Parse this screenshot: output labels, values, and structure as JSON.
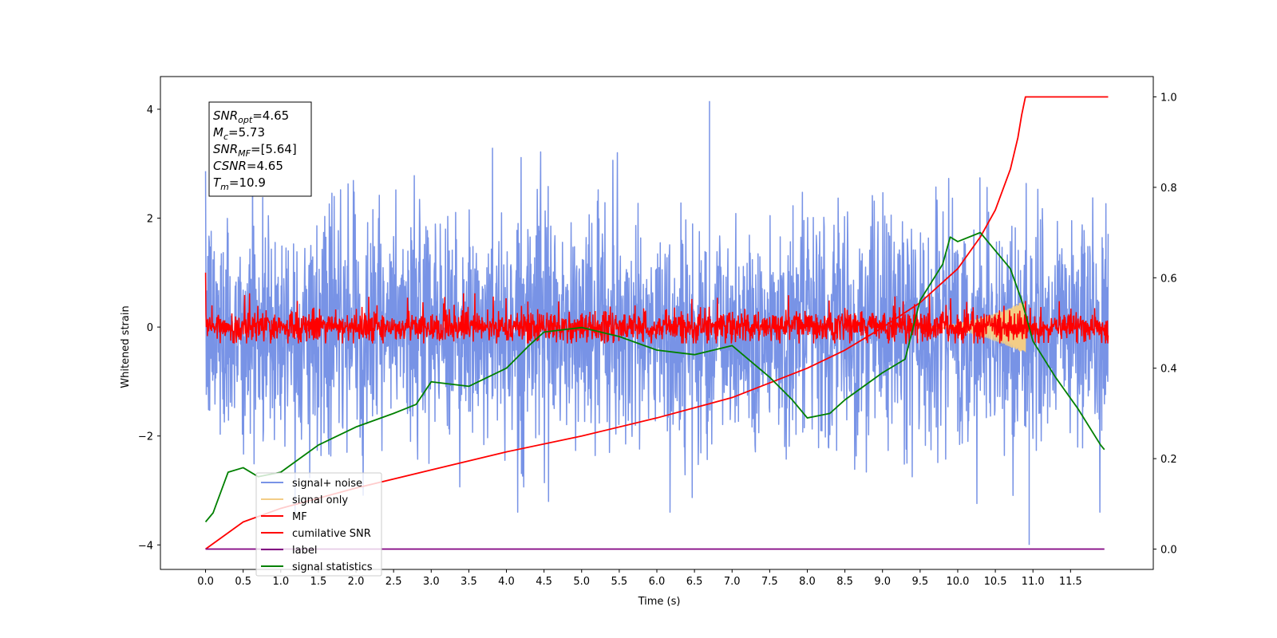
{
  "chart_data": {
    "type": "line",
    "xlabel": "Time (s)",
    "ylabel": "Whitened strain",
    "xlim": [
      -0.6,
      12.6
    ],
    "ylim": [
      -4.45,
      4.6
    ],
    "y2lim": [
      -0.045,
      1.045
    ],
    "x_ticks": [
      "0.0",
      "0.5",
      "1.0",
      "1.5",
      "2.0",
      "2.5",
      "3.0",
      "3.5",
      "4.0",
      "4.5",
      "5.0",
      "5.5",
      "6.0",
      "6.5",
      "7.0",
      "7.5",
      "8.0",
      "8.5",
      "9.0",
      "9.5",
      "10.0",
      "10.5",
      "11.0",
      "11.5"
    ],
    "y_ticks": [
      "4",
      "2",
      "0",
      "−2",
      "−4"
    ],
    "y2_ticks": [
      "1.0",
      "0.8",
      "0.6",
      "0.4",
      "0.2",
      "0.0"
    ],
    "annotation": [
      {
        "base": "SNR",
        "sub": "opt",
        "value": "=4.65"
      },
      {
        "base": "M",
        "sub": "c",
        "value": "=5.73"
      },
      {
        "base": "SNR",
        "sub": "MF",
        "value": "=[5.64]"
      },
      {
        "base": "CSNR",
        "sub": "",
        "value": "=4.65"
      },
      {
        "base": "T",
        "sub": "m",
        "value": "=10.9"
      }
    ],
    "legend": {
      "placement": "lower-left",
      "entries": [
        {
          "label": "signal+ noise",
          "color": "#7893e6"
        },
        {
          "label": "signal only",
          "color": "#f3cd86"
        },
        {
          "label": "MF",
          "color": "#ff0000"
        },
        {
          "label": "cumilative SNR",
          "color": "#ff0000"
        },
        {
          "label": "label",
          "color": "#800080"
        },
        {
          "label": "signal statistics",
          "color": "#008000"
        }
      ]
    },
    "series": [
      {
        "name": "signal+ noise",
        "axis": "left",
        "color": "#7893e6",
        "kind": "noise",
        "x_range": [
          0.0,
          12.0
        ],
        "center": -0.05,
        "upper_max": 4.15,
        "lower_min": -4.0
      },
      {
        "name": "signal only",
        "axis": "left",
        "color": "#f3cd86",
        "kind": "chirp",
        "x_range": [
          9.5,
          10.9
        ],
        "amplitude_max": 0.5
      },
      {
        "name": "MF",
        "axis": "left",
        "color": "#ff0000",
        "kind": "noise",
        "x_range": [
          0.0,
          12.0
        ],
        "center": 0.0,
        "start_value": 1.0,
        "typical_range": [
          -0.3,
          0.6
        ]
      },
      {
        "name": "cumilative SNR",
        "axis": "right",
        "color": "#ff0000",
        "x": [
          0.0,
          0.5,
          1.0,
          2.0,
          3.0,
          4.0,
          5.0,
          6.0,
          7.0,
          8.0,
          8.5,
          9.0,
          9.5,
          10.0,
          10.3,
          10.5,
          10.7,
          10.8,
          10.85,
          10.9,
          11.0,
          12.0
        ],
        "values": [
          0.0,
          0.06,
          0.09,
          0.135,
          0.175,
          0.215,
          0.25,
          0.29,
          0.335,
          0.4,
          0.44,
          0.49,
          0.545,
          0.62,
          0.69,
          0.75,
          0.84,
          0.91,
          0.96,
          1.0,
          1.0,
          1.0
        ]
      },
      {
        "name": "label",
        "axis": "right",
        "color": "#800080",
        "x": [
          0.0,
          11.95
        ],
        "values": [
          0.0,
          0.0
        ]
      },
      {
        "name": "signal statistics",
        "axis": "right",
        "color": "#008000",
        "x": [
          0.0,
          0.1,
          0.3,
          0.5,
          0.7,
          1.0,
          1.5,
          2.0,
          2.5,
          2.8,
          3.0,
          3.5,
          4.0,
          4.3,
          4.5,
          5.0,
          5.5,
          6.0,
          6.5,
          7.0,
          7.5,
          7.8,
          8.0,
          8.3,
          8.5,
          9.0,
          9.3,
          9.5,
          9.8,
          9.9,
          10.0,
          10.3,
          10.5,
          10.7,
          10.85,
          11.0,
          11.3,
          11.6,
          11.9,
          11.95
        ],
        "values": [
          0.06,
          0.08,
          0.17,
          0.18,
          0.16,
          0.17,
          0.23,
          0.27,
          0.3,
          0.32,
          0.37,
          0.36,
          0.4,
          0.45,
          0.48,
          0.49,
          0.47,
          0.44,
          0.43,
          0.45,
          0.38,
          0.33,
          0.29,
          0.3,
          0.33,
          0.39,
          0.42,
          0.55,
          0.63,
          0.69,
          0.68,
          0.7,
          0.66,
          0.62,
          0.55,
          0.46,
          0.38,
          0.31,
          0.23,
          0.22
        ]
      }
    ]
  }
}
